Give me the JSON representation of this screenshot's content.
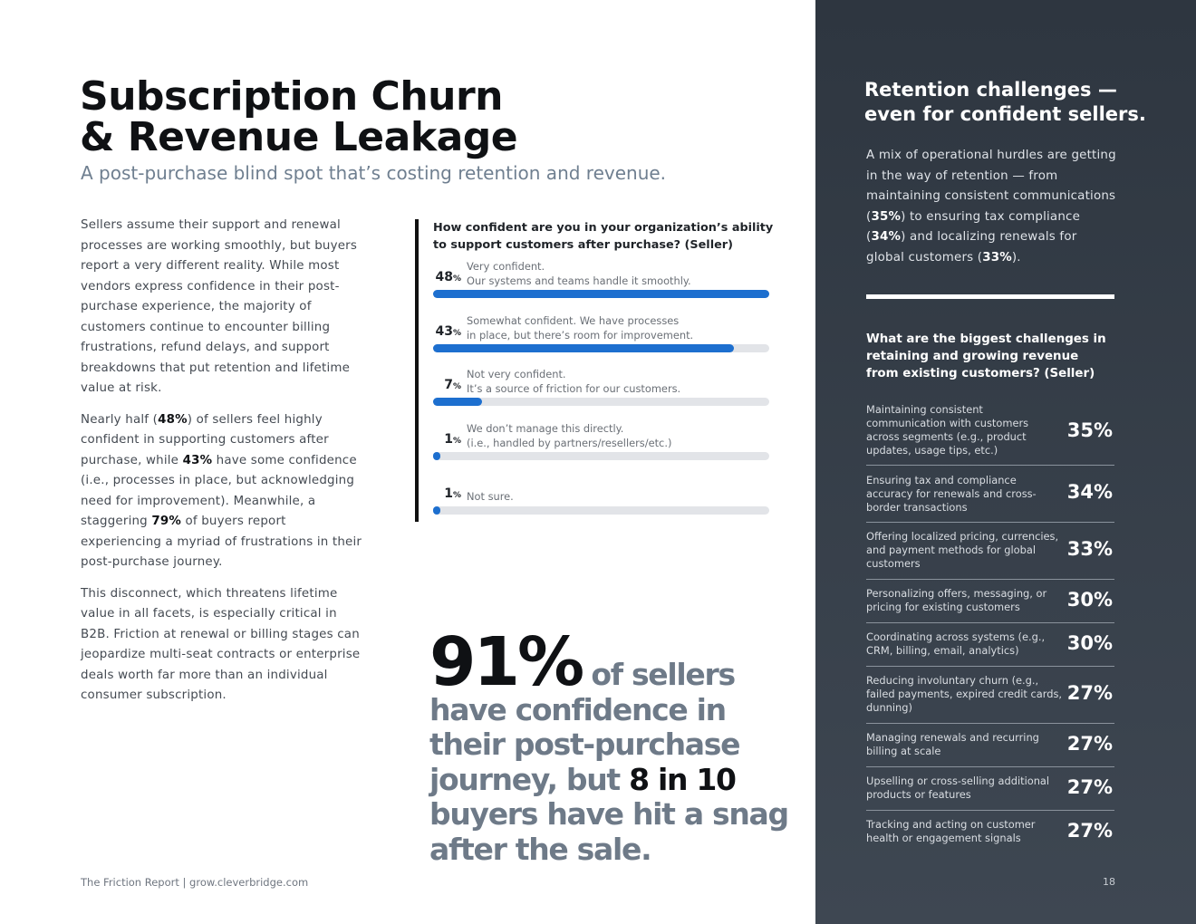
{
  "title_lines": [
    "Subscription Churn",
    "& Revenue Leakage"
  ],
  "subtitle": "A post-purchase blind spot that’s costing retention and revenue.",
  "body": {
    "p1": "Sellers assume their support and renewal processes are working smoothly, but buyers report a very different reality. While most vendors express confidence in their post-purchase experience, the majority of customers continue to encounter billing frustrations, refund delays, and support breakdowns that put retention and lifetime value at risk.",
    "p2": [
      {
        "t": "Nearly half (",
        "b": false
      },
      {
        "t": "48%",
        "b": true
      },
      {
        "t": ") of sellers feel highly confident in supporting customers after purchase, while ",
        "b": false
      },
      {
        "t": "43%",
        "b": true
      },
      {
        "t": " have some confidence (i.e., processes in place, but acknowledging need for improvement). Meanwhile, a staggering ",
        "b": false
      },
      {
        "t": "79%",
        "b": true
      },
      {
        "t": " of buyers report experiencing a myriad of frustrations in their post-purchase journey.",
        "b": false
      }
    ],
    "p3": "This disconnect, which threatens lifetime value in all facets, is especially critical in B2B. Friction at renewal or billing stages can jeopardize multi-seat contracts or enterprise deals worth far more than an individual consumer subscription."
  },
  "chart_data": {
    "type": "bar",
    "title": "How confident are you in your organization’s ability to support customers after purchase? (Seller)",
    "categories": [
      "Very confident. Our systems and teams handle it smoothly.",
      "Somewhat confident. We have processes in place, but there’s room for improvement.",
      "Not very confident. It’s a source of friction for our customers.",
      "We don’t manage this directly. (i.e., handled by partners/resellers/etc.)",
      "Not sure."
    ],
    "values": [
      48,
      43,
      7,
      1,
      1
    ],
    "ylim": [
      0,
      48
    ],
    "unit": "%",
    "bars": [
      {
        "value": 48,
        "label_lines": [
          "Very confident.",
          "Our systems and teams handle it smoothly."
        ]
      },
      {
        "value": 43,
        "label_lines": [
          "Somewhat confident. We have processes",
          "in place, but there’s room for improvement."
        ]
      },
      {
        "value": 7,
        "label_lines": [
          "Not very confident.",
          "It’s a source of friction for our customers."
        ]
      },
      {
        "value": 1,
        "label_lines": [
          "We don’t manage this directly.",
          "(i.e., handled by partners/resellers/etc.)"
        ]
      },
      {
        "value": 1,
        "label_lines": [
          "Not sure."
        ]
      }
    ],
    "colors": {
      "fill": "#1d6fcf",
      "track": "#e2e4e8"
    }
  },
  "stat": {
    "number": "91%",
    "text_a": "of sellers have confidence in their post-purchase journey, but",
    "highlight": "8 in 10",
    "text_b": "buyers have hit a snag after the sale."
  },
  "footer": "The Friction Report  |  grow.cleverbridge.com",
  "sidebar": {
    "title_lines": [
      "Retention challenges —",
      "even for confident sellers."
    ],
    "intro": [
      {
        "t": "A mix of operational hurdles are getting in the way of retention — from maintaining consistent communications (",
        "b": false
      },
      {
        "t": "35%",
        "b": true
      },
      {
        "t": ") to ensuring tax compliance (",
        "b": false
      },
      {
        "t": "34%",
        "b": true
      },
      {
        "t": ") and localizing renewals for global customers (",
        "b": false
      },
      {
        "t": "33%",
        "b": true
      },
      {
        "t": ").",
        "b": false
      }
    ],
    "question": "What are the biggest challenges in retaining and growing revenue from existing customers? (Seller)",
    "challenges": [
      {
        "label": "Maintaining consistent communication with customers across segments (e.g., product updates, usage tips, etc.)",
        "pct": "35%"
      },
      {
        "label": "Ensuring tax and compliance accuracy for renewals and cross-border transactions",
        "pct": "34%"
      },
      {
        "label": "Offering localized pricing, currencies, and payment methods for global customers",
        "pct": "33%"
      },
      {
        "label": "Personalizing offers, messaging, or pricing for existing customers",
        "pct": "30%"
      },
      {
        "label": "Coordinating across systems (e.g., CRM, billing, email, analytics)",
        "pct": "30%"
      },
      {
        "label": "Reducing involuntary churn (e.g., failed payments, expired credit cards, dunning)",
        "pct": "27%"
      },
      {
        "label": "Managing renewals and recurring billing at scale",
        "pct": "27%"
      },
      {
        "label": "Upselling or cross-selling additional products or features",
        "pct": "27%"
      },
      {
        "label": "Tracking and acting on customer health or engagement signals",
        "pct": "27%"
      }
    ],
    "page_number": "18"
  }
}
